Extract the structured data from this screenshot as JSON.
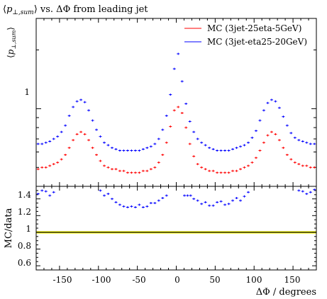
{
  "chart_data": [
    {
      "type": "scatter",
      "title_parts": {
        "p": "p",
        "sub": "⊥,sum",
        "rest": " vs. ΔΦ from leading jet"
      },
      "ylabel_parts": {
        "p": "p",
        "sub": "⊥,sum"
      },
      "xlim": [
        -180,
        180
      ],
      "ylim": [
        0.4,
        2.9
      ],
      "y_scale": "log",
      "x": [
        -177.5,
        -172.5,
        -167.5,
        -162.5,
        -157.5,
        -152.5,
        -147.5,
        -142.5,
        -137.5,
        -132.5,
        -127.5,
        -122.5,
        -117.5,
        -112.5,
        -107.5,
        -102.5,
        -97.5,
        -92.5,
        -87.5,
        -82.5,
        -77.5,
        -72.5,
        -67.5,
        -62.5,
        -57.5,
        -52.5,
        -47.5,
        -42.5,
        -37.5,
        -32.5,
        -27.5,
        -22.5,
        -17.5,
        -12.5,
        -7.5,
        -2.5,
        2.5,
        7.5,
        12.5,
        17.5,
        22.5,
        27.5,
        32.5,
        37.5,
        42.5,
        47.5,
        52.5,
        57.5,
        62.5,
        67.5,
        72.5,
        77.5,
        82.5,
        87.5,
        92.5,
        97.5,
        102.5,
        107.5,
        112.5,
        117.5,
        122.5,
        127.5,
        132.5,
        137.5,
        142.5,
        147.5,
        152.5,
        157.5,
        162.5,
        167.5,
        172.5,
        177.5
      ],
      "series": [
        {
          "name": "MC (3jet-25eta-5GeV)",
          "color": "#ff0000",
          "values": [
            0.49,
            0.5,
            0.5,
            0.51,
            0.52,
            0.53,
            0.55,
            0.58,
            0.63,
            0.69,
            0.74,
            0.76,
            0.74,
            0.69,
            0.63,
            0.58,
            0.54,
            0.51,
            0.5,
            0.49,
            0.49,
            0.48,
            0.48,
            0.47,
            0.47,
            0.47,
            0.47,
            0.48,
            0.48,
            0.49,
            0.5,
            0.53,
            0.58,
            0.67,
            0.81,
            0.98,
            1.02,
            0.95,
            0.8,
            0.66,
            0.57,
            0.52,
            0.5,
            0.49,
            0.48,
            0.48,
            0.47,
            0.47,
            0.47,
            0.47,
            0.48,
            0.48,
            0.49,
            0.5,
            0.51,
            0.53,
            0.56,
            0.61,
            0.67,
            0.73,
            0.76,
            0.74,
            0.69,
            0.63,
            0.58,
            0.55,
            0.53,
            0.52,
            0.51,
            0.51,
            0.5,
            0.5
          ]
        },
        {
          "name": "MC (3jet-eta25-20GeV)",
          "color": "#0000ff",
          "values": [
            0.66,
            0.66,
            0.67,
            0.68,
            0.7,
            0.72,
            0.76,
            0.82,
            0.92,
            1.02,
            1.09,
            1.11,
            1.08,
            0.98,
            0.87,
            0.78,
            0.72,
            0.67,
            0.65,
            0.63,
            0.62,
            0.61,
            0.61,
            0.61,
            0.61,
            0.61,
            0.61,
            0.62,
            0.63,
            0.64,
            0.66,
            0.7,
            0.78,
            0.92,
            1.18,
            1.6,
            1.91,
            1.38,
            1.06,
            0.86,
            0.76,
            0.7,
            0.67,
            0.65,
            0.63,
            0.62,
            0.61,
            0.61,
            0.61,
            0.61,
            0.62,
            0.63,
            0.64,
            0.65,
            0.67,
            0.71,
            0.77,
            0.87,
            0.98,
            1.07,
            1.11,
            1.09,
            1.01,
            0.91,
            0.82,
            0.75,
            0.71,
            0.69,
            0.68,
            0.67,
            0.66,
            0.66
          ]
        }
      ],
      "yticks": [
        "1"
      ],
      "legend": "top-right"
    },
    {
      "type": "scatter",
      "ylabel": "MC/data",
      "xlabel": "ΔΦ / degrees",
      "xlim": [
        -180,
        180
      ],
      "ylim": [
        0.55,
        1.55
      ],
      "yticks": [
        "0.6",
        "0.8",
        "1",
        "1.2",
        "1.4"
      ],
      "xticks": [
        "-150",
        "-100",
        "-50",
        "0",
        "50",
        "100",
        "150"
      ],
      "reference_line": 1.0,
      "reference_band": [
        0.985,
        1.015
      ],
      "band_color": "#ffff00",
      "series": [
        {
          "name": "MC (3jet-eta25-20GeV)",
          "color": "#0000ff",
          "x": [
            -177.5,
            -172.5,
            -167.5,
            -162.5,
            -157.5,
            -97.5,
            -92.5,
            -87.5,
            -82.5,
            -77.5,
            -72.5,
            -67.5,
            -62.5,
            -57.5,
            -52.5,
            -47.5,
            -42.5,
            -37.5,
            -32.5,
            -27.5,
            -22.5,
            -17.5,
            -12.5,
            10.5,
            14.5,
            18.5,
            22.5,
            27.5,
            32.5,
            37.5,
            42.5,
            47.5,
            52.5,
            57.5,
            62.5,
            67.5,
            72.5,
            77.5,
            82.5,
            87.5,
            92.5,
            157.5,
            162.5,
            167.5,
            172.5,
            177.5
          ],
          "values": [
            1.46,
            1.5,
            1.49,
            1.44,
            1.48,
            1.5,
            1.44,
            1.46,
            1.4,
            1.36,
            1.33,
            1.31,
            1.3,
            1.31,
            1.3,
            1.33,
            1.3,
            1.31,
            1.35,
            1.35,
            1.38,
            1.41,
            1.44,
            1.44,
            1.44,
            1.44,
            1.4,
            1.38,
            1.34,
            1.36,
            1.32,
            1.32,
            1.36,
            1.37,
            1.33,
            1.34,
            1.38,
            1.41,
            1.38,
            1.43,
            1.48,
            1.5,
            1.49,
            1.46,
            1.48,
            1.51
          ]
        }
      ]
    }
  ]
}
